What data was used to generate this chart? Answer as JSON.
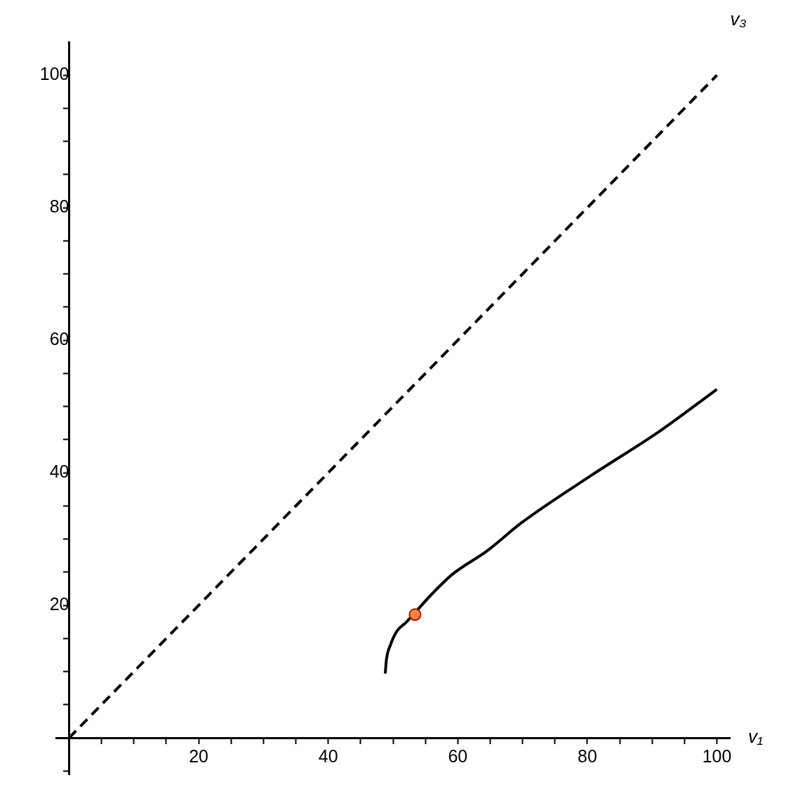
{
  "chart_data": {
    "type": "line",
    "xlabel": "v₁",
    "ylabel": "v₃",
    "xlim": [
      -2,
      102
    ],
    "ylim": [
      -5.5,
      105
    ],
    "xticks": [
      {
        "value": 0,
        "label": null
      },
      {
        "value": 5,
        "label": null
      },
      {
        "value": 10,
        "label": null
      },
      {
        "value": 15,
        "label": null
      },
      20,
      {
        "value": 25,
        "label": null
      },
      {
        "value": 30,
        "label": null
      },
      {
        "value": 35,
        "label": null
      },
      40,
      {
        "value": 45,
        "label": null
      },
      {
        "value": 50,
        "label": null
      },
      {
        "value": 55,
        "label": null
      },
      60,
      {
        "value": 65,
        "label": null
      },
      {
        "value": 70,
        "label": null
      },
      {
        "value": 75,
        "label": null
      },
      80,
      {
        "value": 85,
        "label": null
      },
      {
        "value": 90,
        "label": null
      },
      {
        "value": 95,
        "label": null
      },
      100
    ],
    "yticks": [
      {
        "value": -5,
        "label": null
      },
      {
        "value": 0,
        "label": null
      },
      {
        "value": 5,
        "label": null
      },
      {
        "value": 10,
        "label": null
      },
      {
        "value": 15,
        "label": null
      },
      20,
      {
        "value": 25,
        "label": null
      },
      {
        "value": 30,
        "label": null
      },
      {
        "value": 35,
        "label": null
      },
      40,
      {
        "value": 45,
        "label": null
      },
      {
        "value": 50,
        "label": null
      },
      {
        "value": 55,
        "label": null
      },
      60,
      {
        "value": 65,
        "label": null
      },
      {
        "value": 70,
        "label": null
      },
      {
        "value": 75,
        "label": null
      },
      80,
      {
        "value": 85,
        "label": null
      },
      {
        "value": 90,
        "label": null
      },
      {
        "value": 95,
        "label": null
      },
      100
    ],
    "grid": false,
    "series": [
      {
        "color": "#000000",
        "line_style": "dashed",
        "marker": "none",
        "x": [
          0,
          100
        ],
        "values": [
          0,
          100
        ]
      },
      {
        "color": "#000000",
        "line_style": "solid",
        "marker": "none",
        "x": [
          48.8,
          49.0,
          49.6,
          50.6,
          52.0,
          56.0,
          59.2,
          64.5,
          69.9,
          80.6,
          91.2,
          100
        ],
        "values": [
          9.7,
          11.9,
          14.0,
          16.1,
          17.4,
          21.7,
          24.7,
          28.2,
          32.5,
          39.6,
          46.3,
          52.6
        ]
      },
      {
        "type": "scatter",
        "color": "#f08a3c",
        "marker": "circle",
        "x": [
          53.4
        ],
        "values": [
          18.6
        ]
      }
    ]
  }
}
